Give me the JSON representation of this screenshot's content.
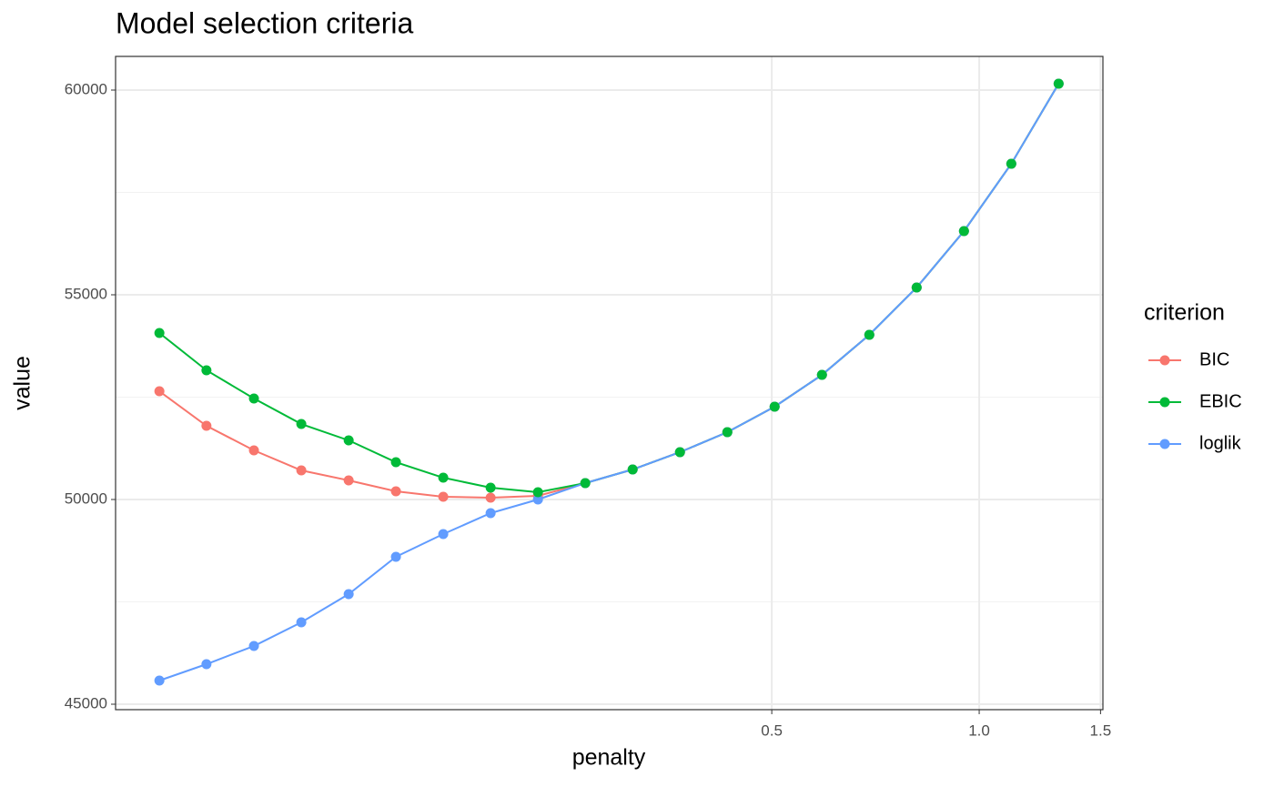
{
  "chart_data": {
    "type": "line",
    "title": "Model selection criteria",
    "x_label": "penalty",
    "y_label": "value",
    "legend_title": "criterion",
    "legend": "right",
    "grid": true,
    "xscale": "log",
    "x": [
      0.0646,
      0.0756,
      0.0886,
      0.1038,
      0.1216,
      0.1424,
      0.1668,
      0.1954,
      0.2289,
      0.2681,
      0.3141,
      0.3679,
      0.431,
      0.5048,
      0.5913,
      0.6927,
      0.8114,
      0.9504,
      1.1133,
      1.304
    ],
    "series": [
      {
        "name": "BIC",
        "color": "#F8766D",
        "values": [
          52644,
          51800,
          51200,
          50711,
          50467,
          50200,
          50067,
          50044,
          50089,
          50400,
          50733,
          51156,
          51644,
          52267,
          53044,
          54022,
          55178,
          56556,
          58200,
          60156
        ]
      },
      {
        "name": "EBIC",
        "color": "#00BA38",
        "values": [
          54067,
          53156,
          52467,
          51844,
          51444,
          50911,
          50533,
          50289,
          50178,
          50400,
          50733,
          51156,
          51644,
          52267,
          53044,
          54022,
          55178,
          56556,
          58200,
          60156
        ]
      },
      {
        "name": "loglik",
        "color": "#619CFF",
        "values": [
          45578,
          45978,
          46422,
          47000,
          47689,
          48600,
          49156,
          49667,
          50000,
          50400,
          50733,
          51156,
          51644,
          52267,
          53044,
          54022,
          55178,
          56556,
          58200,
          60156
        ]
      }
    ],
    "xlim": [
      0.0558,
      1.512
    ],
    "xticks": [
      0.5,
      {
        "value": 1.0,
        "label": "1.0"
      },
      1.5
    ],
    "ylim": [
      44867,
      60822
    ],
    "yticks": [
      45000,
      50000,
      55000,
      60000
    ]
  }
}
